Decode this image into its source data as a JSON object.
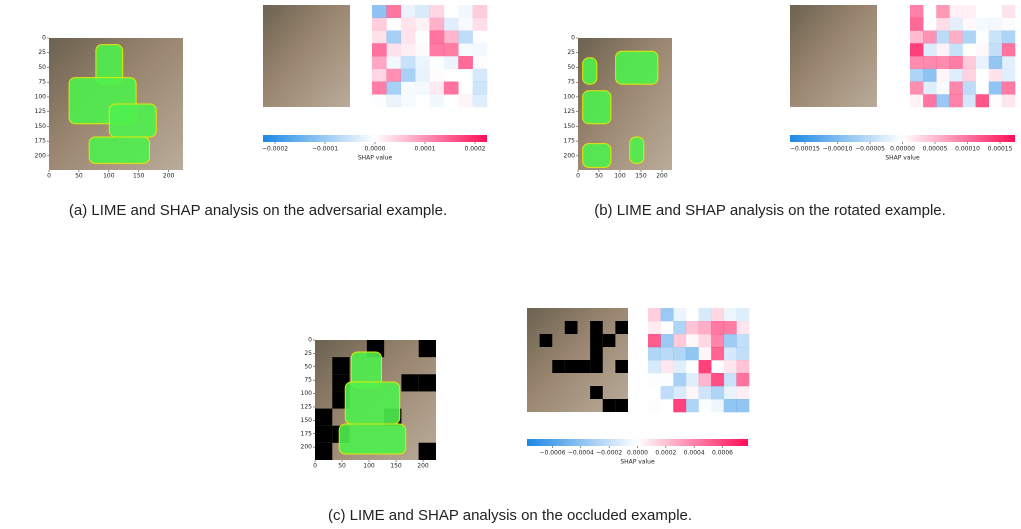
{
  "panels": [
    {
      "caption": "(a) LIME and SHAP analysis on the adversarial example.",
      "lime": {
        "xlim": [
          0,
          224
        ],
        "ylim": [
          0,
          224
        ],
        "xticks": [
          0,
          50,
          100,
          150,
          200
        ],
        "yticks": [
          0,
          25,
          50,
          75,
          100,
          125,
          150,
          175,
          200
        ]
      },
      "colorbar": {
        "label": "SHAP value",
        "clim": [
          -0.000224,
          0.000224
        ],
        "ticks": [
          {
            "value": -0.0002,
            "label": "−0.0002"
          },
          {
            "value": -0.0001,
            "label": "−0.0001"
          },
          {
            "value": 0,
            "label": "0.0000"
          },
          {
            "value": 0.0001,
            "label": "0.0001"
          },
          {
            "value": 0.0002,
            "label": "0.0002"
          }
        ]
      }
    },
    {
      "caption": "(b) LIME and SHAP analysis on the rotated example.",
      "lime": {
        "xlim": [
          0,
          224
        ],
        "ylim": [
          0,
          224
        ],
        "xticks": [
          0,
          50,
          100,
          150,
          200
        ],
        "yticks": [
          0,
          25,
          50,
          75,
          100,
          125,
          150,
          175,
          200
        ]
      },
      "colorbar": {
        "label": "SHAP value",
        "clim": [
          -0.000173,
          0.000173
        ],
        "ticks": [
          {
            "value": -0.00015,
            "label": "−0.00015"
          },
          {
            "value": -0.0001,
            "label": "−0.00010"
          },
          {
            "value": -5e-05,
            "label": "−0.00005"
          },
          {
            "value": 0,
            "label": "0.00000"
          },
          {
            "value": 5e-05,
            "label": "0.00005"
          },
          {
            "value": 0.0001,
            "label": "0.00010"
          },
          {
            "value": 0.00015,
            "label": "0.00015"
          }
        ]
      }
    },
    {
      "caption": "(c) LIME and SHAP analysis on the occluded example.",
      "lime": {
        "xlim": [
          0,
          224
        ],
        "ylim": [
          0,
          224
        ],
        "xticks": [
          0,
          50,
          100,
          150,
          200
        ],
        "yticks": [
          0,
          25,
          50,
          75,
          100,
          125,
          150,
          175,
          200
        ]
      },
      "colorbar": {
        "label": "SHAP value",
        "clim": [
          -0.00078,
          0.00078
        ],
        "ticks": [
          {
            "value": -0.0006,
            "label": "−0.0006"
          },
          {
            "value": -0.0004,
            "label": "−0.0004"
          },
          {
            "value": -0.0002,
            "label": "−0.0002"
          },
          {
            "value": 0,
            "label": "0.0000"
          },
          {
            "value": 0.0002,
            "label": "0.0002"
          },
          {
            "value": 0.0004,
            "label": "0.0004"
          },
          {
            "value": 0.0006,
            "label": "0.0006"
          }
        ]
      }
    }
  ]
}
